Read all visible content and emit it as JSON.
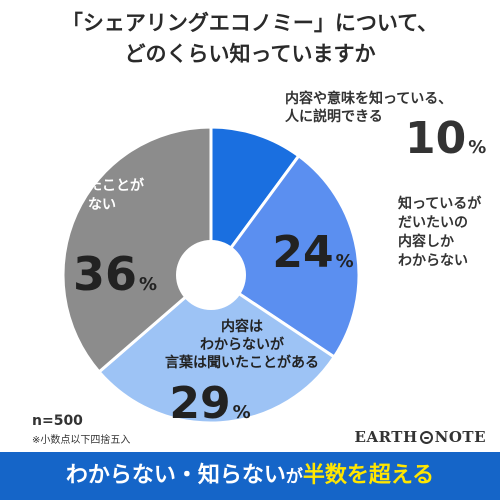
{
  "title": {
    "line1": "「シェアリングエコノミー」について、",
    "line2": "どのくらい知っていますか"
  },
  "chart_data": {
    "type": "pie",
    "labels": [
      "内容や意味を知っている、人に説明できる",
      "知っているがだいたいの内容しかわからない",
      "内容はわからないが言葉は聞いたことがある",
      "聞いたことがない"
    ],
    "values": [
      10,
      24,
      29,
      36
    ],
    "unit": "%",
    "colors": [
      "#1a6fe0",
      "#5b8ff0",
      "#9dc3f5",
      "#8c8c8c"
    ]
  },
  "slices": [
    {
      "label_lines": [
        "内容や意味を知っている、",
        "人に説明できる"
      ],
      "value": "10",
      "unit": "%"
    },
    {
      "label_lines": [
        "知っているが",
        "だいたいの",
        "内容しか",
        "わからない"
      ],
      "value": "24",
      "unit": "%"
    },
    {
      "label_lines": [
        "内容は",
        "わからないが",
        "言葉は聞いたことがある"
      ],
      "value": "29",
      "unit": "%"
    },
    {
      "label_lines": [
        "聞いたことが",
        "ない"
      ],
      "value": "36",
      "unit": "%"
    }
  ],
  "footer": {
    "n": "n=500",
    "note": "※小数点以下四捨五入"
  },
  "logo": {
    "part1": "EARTH",
    "part2": "NOTE"
  },
  "banner": {
    "part1": "わからない・知らない",
    "part2": "が",
    "part3": "半数を超える"
  }
}
